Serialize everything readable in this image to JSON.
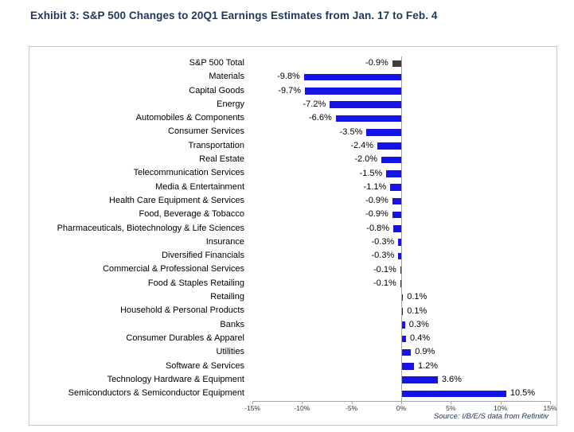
{
  "title": "Exhibit 3: S&P 500 Changes to 20Q1 Earnings Estimates from Jan. 17 to Feb. 4",
  "chart_data": {
    "type": "bar",
    "orientation": "horizontal",
    "categories": [
      "S&P 500 Total",
      "Materials",
      "Capital Goods",
      "Energy",
      "Automobiles & Components",
      "Consumer Services",
      "Transportation",
      "Real Estate",
      "Telecommunication Services",
      "Media & Entertainment",
      "Health Care Equipment & Services",
      "Food, Beverage & Tobacco",
      "Pharmaceuticals, Biotechnology & Life Sciences",
      "Insurance",
      "Diversified Financials",
      "Commercial & Professional Services",
      "Food & Staples Retailing",
      "Retailing",
      "Household & Personal Products",
      "Banks",
      "Consumer Durables & Apparel",
      "Utilities",
      "Software & Services",
      "Technology Hardware & Equipment",
      "Semiconductors & Semiconductor Equipment"
    ],
    "values": [
      -0.9,
      -9.8,
      -9.7,
      -7.2,
      -6.6,
      -3.5,
      -2.4,
      -2.0,
      -1.5,
      -1.1,
      -0.9,
      -0.9,
      -0.8,
      -0.3,
      -0.3,
      -0.1,
      -0.1,
      0.1,
      0.1,
      0.3,
      0.4,
      0.9,
      1.2,
      3.6,
      10.5
    ],
    "value_labels": [
      "-0.9%",
      "-9.8%",
      "-9.7%",
      "-7.2%",
      "-6.6%",
      "-3.5%",
      "-2.4%",
      "-2.0%",
      "-1.5%",
      "-1.1%",
      "-0.9%",
      "-0.9%",
      "-0.8%",
      "-0.3%",
      "-0.3%",
      "-0.1%",
      "-0.1%",
      "0.1%",
      "0.1%",
      "0.3%",
      "0.4%",
      "0.9%",
      "1.2%",
      "3.6%",
      "10.5%"
    ],
    "xlim": [
      -15,
      15
    ],
    "x_ticks": [
      "-15%",
      "-10%",
      "-5%",
      "0%",
      "5%",
      "10%",
      "15%"
    ],
    "grid": "off",
    "legend": "none",
    "source": "Source: I/B/E/S data from Refinitiv",
    "highlight_index": 0,
    "colors": {
      "bar": "#1414e6",
      "total_bar": "#3f3f3f",
      "title_text": "#1f3864",
      "source_text": "#1f3864",
      "axis_line": "#a6a6a6"
    }
  }
}
